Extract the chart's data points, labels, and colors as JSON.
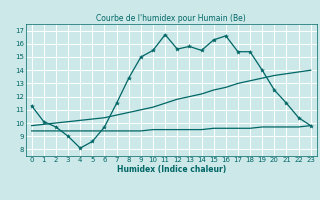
{
  "title": "Courbe de l'humidex pour Humain (Be)",
  "xlabel": "Humidex (Indice chaleur)",
  "bg_color": "#cce8e8",
  "line_color": "#006666",
  "grid_color": "#ffffff",
  "xlim": [
    -0.5,
    23.5
  ],
  "ylim": [
    7.5,
    17.5
  ],
  "xticks": [
    0,
    1,
    2,
    3,
    4,
    5,
    6,
    7,
    8,
    9,
    10,
    11,
    12,
    13,
    14,
    15,
    16,
    17,
    18,
    19,
    20,
    21,
    22,
    23
  ],
  "yticks": [
    8,
    9,
    10,
    11,
    12,
    13,
    14,
    15,
    16,
    17
  ],
  "line1_x": [
    0,
    1,
    2,
    3,
    4,
    5,
    6,
    7,
    8,
    9,
    10,
    11,
    12,
    13,
    14,
    15,
    16,
    17,
    18,
    19,
    20,
    21,
    22,
    23
  ],
  "line1_y": [
    11.3,
    10.1,
    9.7,
    9.0,
    8.1,
    8.6,
    9.7,
    11.5,
    13.4,
    15.0,
    15.5,
    16.7,
    15.6,
    15.8,
    15.5,
    16.3,
    16.6,
    15.4,
    15.4,
    14.0,
    12.5,
    11.5,
    10.4,
    9.8
  ],
  "line2_x": [
    0,
    3,
    4,
    5,
    6,
    7,
    8,
    9,
    10,
    11,
    12,
    13,
    14,
    15,
    16,
    17,
    18,
    19,
    20,
    23
  ],
  "line2_y": [
    9.8,
    10.1,
    10.2,
    10.3,
    10.4,
    10.6,
    10.8,
    11.0,
    11.2,
    11.5,
    11.8,
    12.0,
    12.2,
    12.5,
    12.7,
    13.0,
    13.2,
    13.4,
    13.6,
    14.0
  ],
  "line3_x": [
    0,
    3,
    4,
    5,
    6,
    7,
    8,
    9,
    10,
    11,
    12,
    13,
    14,
    15,
    16,
    17,
    18,
    19,
    20,
    21,
    22,
    23
  ],
  "line3_y": [
    9.4,
    9.4,
    9.4,
    9.4,
    9.4,
    9.4,
    9.4,
    9.4,
    9.5,
    9.5,
    9.5,
    9.5,
    9.5,
    9.6,
    9.6,
    9.6,
    9.6,
    9.7,
    9.7,
    9.7,
    9.7,
    9.8
  ]
}
